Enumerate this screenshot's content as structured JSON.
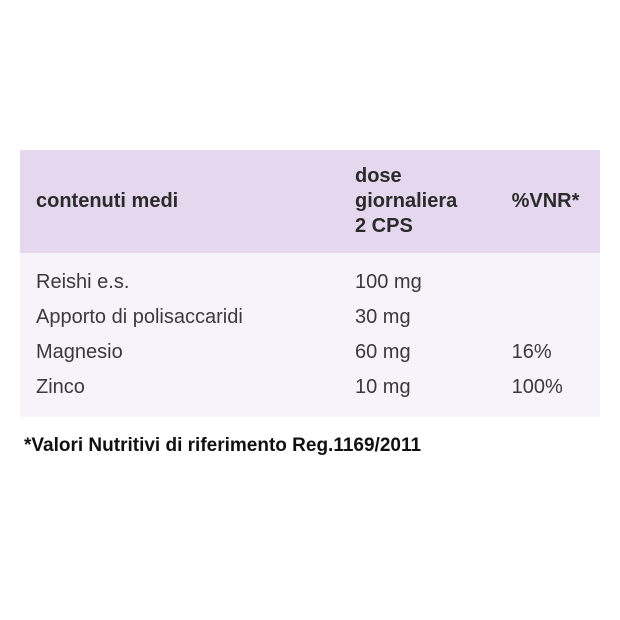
{
  "table": {
    "type": "table",
    "header_bg": "#e5d7ed",
    "body_bg": "#f7f3fa",
    "text_color": "#3a3a3a",
    "header_text_color": "#2b2b2b",
    "font_size_pt": 15,
    "columns": [
      {
        "label": "contenuti medi",
        "width_pct": 55,
        "align": "left"
      },
      {
        "label": "dose giornaliera\n2 CPS",
        "width_pct": 27,
        "align": "left"
      },
      {
        "label": "%VNR*",
        "width_pct": 18,
        "align": "left"
      }
    ],
    "rows": [
      {
        "ingredient": "Reishi e.s.",
        "dose": "100 mg",
        "vnr": ""
      },
      {
        "ingredient": "Apporto di polisaccaridi",
        "dose": "30 mg",
        "vnr": ""
      },
      {
        "ingredient": "Magnesio",
        "dose": "60 mg",
        "vnr": "16%"
      },
      {
        "ingredient": "Zinco",
        "dose": "10 mg",
        "vnr": "100%"
      }
    ]
  },
  "footnote": "*Valori Nutritivi di riferimento Reg.1169/2011",
  "colors": {
    "page_bg": "#ffffff",
    "footnote_color": "#111111"
  }
}
